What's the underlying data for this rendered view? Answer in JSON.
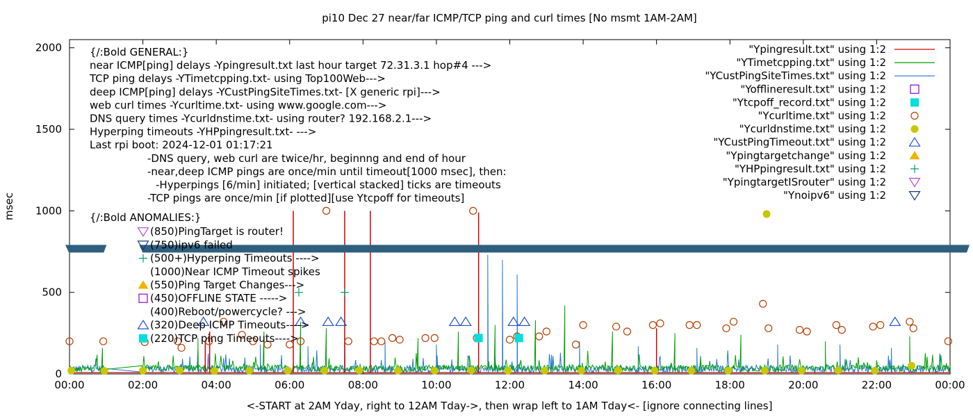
{
  "chart_data": {
    "type": "line",
    "title": "pi10 Dec 27  near/far ICMP/TCP ping and curl times [No msmt 1AM-2AM]",
    "ylabel": "msec",
    "xlabel": "<-START at 2AM Yday, right to 12AM Tday->, then wrap left to 1AM Tday<- [ignore connecting lines]",
    "ylim": [
      0,
      2050
    ],
    "xlim": [
      0,
      24
    ],
    "yticks": [
      0,
      500,
      1000,
      1500,
      2000
    ],
    "xticks": [
      "00:00",
      "02:00",
      "04:00",
      "06:00",
      "08:00",
      "10:00",
      "12:00",
      "14:00",
      "16:00",
      "18:00",
      "20:00",
      "22:00",
      "00:00"
    ],
    "legend_position": "top-right",
    "legend": [
      {
        "label": "\"Ypingresult.txt\" using 1:2",
        "kind": "line",
        "color": "#cc0000"
      },
      {
        "label": "\"YTimetcpping.txt\" using 1:2",
        "kind": "line",
        "color": "#00a000"
      },
      {
        "label": "\"YCustPingSiteTimes.txt\" using 1:2",
        "kind": "line",
        "color": "#1f77d0"
      },
      {
        "label": "\"Yofflineresult.txt\" using 1:2",
        "kind": "square-open",
        "color": "#9400d3"
      },
      {
        "label": "\"Ytcpoff_record.txt\" using 1:2",
        "kind": "square-filled",
        "color": "#00dede"
      },
      {
        "label": "\"Ycurltime.txt\" using 1:2",
        "kind": "circle-open",
        "color": "#b84000"
      },
      {
        "label": "\"Ycurldnstime.txt\" using 1:2",
        "kind": "circle-filled",
        "color": "#c8c800"
      },
      {
        "label": "\"YCustPingTimeout.txt\" using 1:2",
        "kind": "triangle-up-open",
        "color": "#2050d0"
      },
      {
        "label": "\"Ypingtargetchange\" using 1:2",
        "kind": "triangle-up-filled",
        "color": "#f0b400"
      },
      {
        "label": "\"YHPpingresult.txt\" using 1:2",
        "kind": "plus",
        "color": "#00a060"
      },
      {
        "label": "\"YpingtargetISrouter\" using 1:2",
        "kind": "triangle-down-open",
        "color": "#b050e0"
      },
      {
        "label": "\"Ynoipv6\" using 1:2",
        "kind": "triangle-down-open",
        "color": "#1a3a80"
      }
    ],
    "notes_general": [
      "{/:Bold GENERAL:}",
      "near ICMP[ping] delays -Ypingresult.txt last hour target 72.31.3.1 hop#4 --->",
      "TCP ping delays -YTimetcpping.txt- using Top100Web--->",
      "deep ICMP[ping] delays -YCustPingSiteTimes.txt- [X generic rpi]--->",
      "web curl times -Ycurltime.txt- using www.google.com--->",
      "DNS query times -Ycurldnstime.txt- using router? 192.168.2.1--->",
      "Hyperping timeouts -YHPpingresult.txt- --->",
      "Last rpi boot: 2024-12-01 01:17:21"
    ],
    "notes_indented": [
      "-DNS query, web curl are twice/hr, beginnng and end of hour",
      "-near,deep ICMP pings are once/min until timeout[1000 msec], then:",
      "  -Hyperpings [6/min] initiated; [vertical stacked] ticks are timeouts",
      "-TCP pings are once/min [if plotted][use Ytcpoff for timeouts]"
    ],
    "anomalies_title": "{/:Bold ANOMALIES:}",
    "anomalies": [
      {
        "text": "(850)PingTarget is router!",
        "marker": "triangle-down-open",
        "color": "#b050e0"
      },
      {
        "text": "(750)ipv6 failed",
        "marker": "triangle-down-open",
        "color": "#1a3a80"
      },
      {
        "text": "(500+)Hyperping Timeouts ---->",
        "marker": "plus",
        "color": "#00a060"
      },
      {
        "text": "(1000)Near ICMP Timeout spikes",
        "marker": "none",
        "color": "#cc0000"
      },
      {
        "text": "(550)Ping Target Changes--->",
        "marker": "triangle-up-filled",
        "color": "#f0b400"
      },
      {
        "text": "(450)OFFLINE STATE ----->",
        "marker": "square-open",
        "color": "#9400d3"
      },
      {
        "text": "(400)Reboot/powercycle? --->",
        "marker": "none",
        "color": "#000000"
      },
      {
        "text": "(320)Deep ICMP Timeouts---->",
        "marker": "triangle-up-open",
        "color": "#2050d0"
      },
      {
        "text": "(220)TCP ping Timeouts---->",
        "marker": "square-filled",
        "color": "#00dede"
      }
    ],
    "series": {
      "ipv6_band": {
        "y": 770,
        "color": "#2e5f7e",
        "gaps": [
          [
            1.0,
            1.9
          ]
        ]
      },
      "near_icmp_spikes": {
        "x": [
          3.7,
          3.82,
          6.1,
          7.5,
          8.2,
          11.15,
          16.0
        ],
        "y": [
          200,
          260,
          1000,
          1000,
          1000,
          990,
          280
        ],
        "color": "#cc0000"
      },
      "tcp_peaks": {
        "x": [
          0.9,
          3.5,
          5.3,
          6.3,
          7.0,
          9.5,
          10.6,
          11.6,
          12.7,
          13.5,
          14.8,
          16.5,
          18.3,
          20.6,
          22.9
        ],
        "y": [
          160,
          220,
          260,
          320,
          280,
          220,
          260,
          300,
          330,
          420,
          260,
          250,
          240,
          200,
          230
        ],
        "color": "#00a000"
      },
      "deep_icmp_peaks": {
        "x": [
          3.5,
          5.2,
          6.5,
          7.5,
          8.6,
          10.0,
          11.4,
          11.8,
          12.2,
          13.9,
          15.5,
          17.1,
          19.3,
          21.0,
          22.4
        ],
        "y": [
          150,
          180,
          170,
          250,
          200,
          180,
          730,
          700,
          610,
          200,
          170,
          160,
          180,
          180,
          160
        ],
        "color": "#1f77d0"
      },
      "curl_times": {
        "x": [
          0.0,
          0.92,
          2.05,
          2.95,
          3.05,
          3.8,
          4.2,
          4.7,
          5.0,
          5.4,
          6.0,
          6.3,
          7.0,
          7.6,
          8.3,
          8.5,
          8.8,
          9.0,
          9.7,
          9.95,
          11.0,
          11.1,
          12.0,
          12.2,
          12.8,
          13.0,
          13.8,
          14.0,
          14.9,
          15.2,
          15.9,
          16.1,
          16.9,
          17.1,
          17.9,
          18.1,
          18.9,
          19.05,
          19.9,
          20.1,
          20.9,
          21.05,
          21.9,
          22.1,
          22.9,
          23.0,
          23.95
        ],
        "y": [
          200,
          200,
          195,
          200,
          160,
          200,
          320,
          240,
          200,
          180,
          180,
          200,
          1000,
          200,
          200,
          200,
          220,
          210,
          220,
          220,
          1000,
          220,
          210,
          230,
          230,
          260,
          180,
          300,
          290,
          260,
          300,
          310,
          300,
          300,
          280,
          320,
          430,
          280,
          270,
          260,
          300,
          270,
          290,
          300,
          320,
          280,
          200
        ],
        "color": "#b84000"
      },
      "curl_dns_times": {
        "x": [
          0.05,
          0.95,
          2.0,
          3.0,
          3.95,
          4.9,
          5.95,
          6.95,
          7.9,
          8.95,
          9.95,
          10.95,
          11.95,
          12.95,
          13.95,
          14.95,
          15.95,
          16.95,
          17.95,
          18.95,
          19.0,
          19.95,
          20.95,
          21.95,
          22.95
        ],
        "y": [
          20,
          18,
          20,
          22,
          18,
          20,
          20,
          20,
          22,
          20,
          20,
          22,
          20,
          20,
          20,
          22,
          20,
          20,
          20,
          20,
          980,
          20,
          22,
          20,
          50
        ],
        "color": "#c8c800"
      },
      "deep_icmp_timeouts": {
        "x": [
          3.65,
          6.3,
          7.05,
          7.4,
          10.5,
          10.8,
          12.1,
          12.4,
          22.5
        ],
        "y": [
          320,
          320,
          320,
          320,
          320,
          320,
          320,
          320,
          320
        ],
        "color": "#2050d0"
      },
      "tcp_timeouts": {
        "x": [
          11.15,
          12.25
        ],
        "y": [
          220,
          220
        ],
        "color": "#00dede"
      },
      "hyperping_timeouts": {
        "x": [
          6.25,
          7.5
        ],
        "y": [
          500,
          500
        ],
        "color": "#00a060"
      },
      "ping_target_change": {
        "x": [],
        "y": [],
        "color": "#f0b400"
      }
    }
  }
}
